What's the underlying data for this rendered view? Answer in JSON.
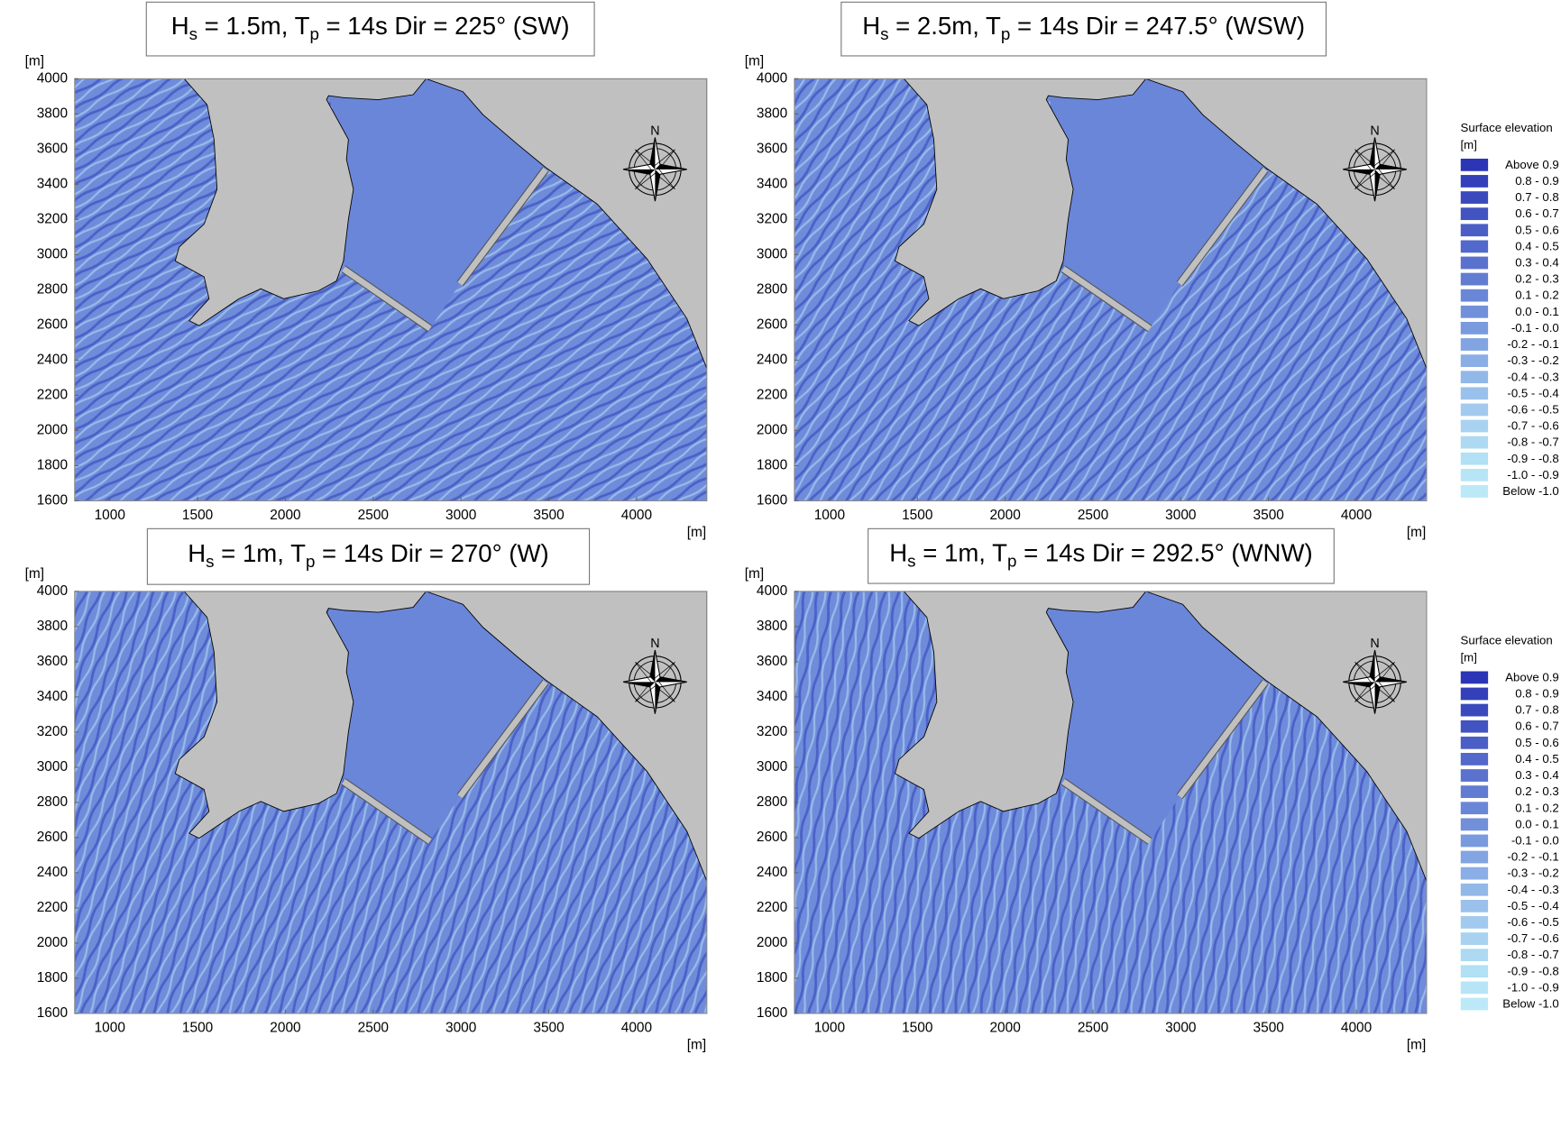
{
  "chart_data": [
    {
      "type": "wave-map",
      "title": "Hs = 1.5m, Tp = 14s Dir = 225° (SW)",
      "x_label": "[m]",
      "y_label": "[m]",
      "xlim": [
        800,
        4400
      ],
      "ylim": [
        1600,
        4000
      ],
      "xticks": [
        1000,
        1500,
        2000,
        2500,
        3000,
        3500,
        4000
      ],
      "yticks": [
        1600,
        1800,
        2000,
        2200,
        2400,
        2600,
        2800,
        3000,
        3200,
        3400,
        3600,
        3800,
        4000
      ]
    },
    {
      "type": "wave-map",
      "title": "Hs = 2.5m, Tp = 14s Dir = 247.5° (WSW)",
      "x_label": "[m]",
      "y_label": "[m]",
      "xlim": [
        800,
        4400
      ],
      "ylim": [
        1600,
        4000
      ],
      "xticks": [
        1000,
        1500,
        2000,
        2500,
        3000,
        3500,
        4000
      ],
      "yticks": [
        1600,
        1800,
        2000,
        2200,
        2400,
        2600,
        2800,
        3000,
        3200,
        3400,
        3600,
        3800,
        4000
      ],
      "legend": {
        "title": "Surface elevation",
        "unit": "[m]",
        "entries": [
          {
            "label": "Above 0.9",
            "color": "#2b35b5"
          },
          {
            "label": "0.8 - 0.9",
            "color": "#3340b9"
          },
          {
            "label": "0.7 - 0.8",
            "color": "#3a4abd"
          },
          {
            "label": "0.6 - 0.7",
            "color": "#4254c1"
          },
          {
            "label": "0.5 - 0.6",
            "color": "#4a5ec6"
          },
          {
            "label": "0.4 - 0.5",
            "color": "#5268ca"
          },
          {
            "label": "0.3 - 0.4",
            "color": "#5a72ce"
          },
          {
            "label": "0.2 - 0.3",
            "color": "#627cd2"
          },
          {
            "label": "0.1 - 0.2",
            "color": "#6a86d6"
          },
          {
            "label": "0.0 - 0.1",
            "color": "#7290da"
          },
          {
            "label": "-0.1 - 0.0",
            "color": "#7a9ade"
          },
          {
            "label": "-0.2 - -0.1",
            "color": "#82a4e2"
          },
          {
            "label": "-0.3 - -0.2",
            "color": "#8aaee5"
          },
          {
            "label": "-0.4 - -0.3",
            "color": "#92b8e8"
          },
          {
            "label": "-0.5 - -0.4",
            "color": "#9ac1eb"
          },
          {
            "label": "-0.6 - -0.5",
            "color": "#a2caee"
          },
          {
            "label": "-0.7 - -0.6",
            "color": "#a8d2f0"
          },
          {
            "label": "-0.8 - -0.7",
            "color": "#addaf2"
          },
          {
            "label": "-0.9 - -0.8",
            "color": "#b2e0f4"
          },
          {
            "label": "-1.0 - -0.9",
            "color": "#b7e5f6"
          },
          {
            "label": "Below -1.0",
            "color": "#bce9f8"
          }
        ]
      }
    },
    {
      "type": "wave-map",
      "title": "Hs = 1m, Tp = 14s Dir = 270° (W)",
      "x_label": "[m]",
      "y_label": "[m]",
      "xlim": [
        800,
        4400
      ],
      "ylim": [
        1600,
        4000
      ],
      "xticks": [
        1000,
        1500,
        2000,
        2500,
        3000,
        3500,
        4000
      ],
      "yticks": [
        1600,
        1800,
        2000,
        2200,
        2400,
        2600,
        2800,
        3000,
        3200,
        3400,
        3600,
        3800,
        4000
      ]
    },
    {
      "type": "wave-map",
      "title": "Hs = 1m, Tp = 14s Dir = 292.5° (WNW)",
      "x_label": "[m]",
      "y_label": "[m]",
      "xlim": [
        800,
        4400
      ],
      "ylim": [
        1600,
        4000
      ],
      "xticks": [
        1000,
        1500,
        2000,
        2500,
        3000,
        3500,
        4000
      ],
      "yticks": [
        1600,
        1800,
        2000,
        2200,
        2400,
        2600,
        2800,
        3000,
        3200,
        3400,
        3600,
        3800,
        4000
      ],
      "legend": {
        "title": "Surface elevation",
        "unit": "[m]",
        "entries": [
          {
            "label": "Above 0.9",
            "color": "#2b35b5"
          },
          {
            "label": "0.8 - 0.9",
            "color": "#3340b9"
          },
          {
            "label": "0.7 - 0.8",
            "color": "#3a4abd"
          },
          {
            "label": "0.6 - 0.7",
            "color": "#4254c1"
          },
          {
            "label": "0.5 - 0.6",
            "color": "#4a5ec6"
          },
          {
            "label": "0.4 - 0.5",
            "color": "#5268ca"
          },
          {
            "label": "0.3 - 0.4",
            "color": "#5a72ce"
          },
          {
            "label": "0.2 - 0.3",
            "color": "#627cd2"
          },
          {
            "label": "0.1 - 0.2",
            "color": "#6a86d6"
          },
          {
            "label": "0.0 - 0.1",
            "color": "#7290da"
          },
          {
            "label": "-0.1 - 0.0",
            "color": "#7a9ade"
          },
          {
            "label": "-0.2 - -0.1",
            "color": "#82a4e2"
          },
          {
            "label": "-0.3 - -0.2",
            "color": "#8aaee5"
          },
          {
            "label": "-0.4 - -0.3",
            "color": "#92b8e8"
          },
          {
            "label": "-0.5 - -0.4",
            "color": "#9ac1eb"
          },
          {
            "label": "-0.6 - -0.5",
            "color": "#a2caee"
          },
          {
            "label": "-0.7 - -0.6",
            "color": "#a8d2f0"
          },
          {
            "label": "-0.8 - -0.7",
            "color": "#addaf2"
          },
          {
            "label": "-0.9 - -0.8",
            "color": "#b2e0f4"
          },
          {
            "label": "-1.0 - -0.9",
            "color": "#b7e5f6"
          },
          {
            "label": "Below -1.0",
            "color": "#bce9f8"
          }
        ]
      }
    }
  ]
}
